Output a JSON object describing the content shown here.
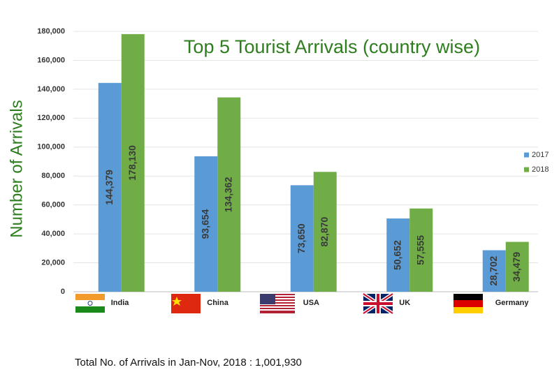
{
  "chart_data": {
    "type": "bar",
    "title": "Top 5 Tourist Arrivals (country wise)",
    "y_label": "Number of Arrivals",
    "footnote": "Total No. of Arrivals in Jan-Nov, 2018 : 1,001,930",
    "categories": [
      "India",
      "China",
      "USA",
      "UK",
      "Germany"
    ],
    "series": [
      {
        "name": "2017",
        "color": "#5b9bd5",
        "values": [
          144379,
          93654,
          73650,
          50652,
          28702
        ],
        "value_labels": [
          "144,379",
          "93,654",
          "73,650",
          "50,652",
          "28,702"
        ]
      },
      {
        "name": "2018",
        "color": "#70ad47",
        "values": [
          178130,
          134362,
          82870,
          57555,
          34479
        ],
        "value_labels": [
          "178,130",
          "134,362",
          "82,870",
          "57,555",
          "34,479"
        ]
      }
    ],
    "ylim": [
      0,
      180000
    ],
    "yticks": [
      0,
      {
        "value": 20000,
        "label": "20,000"
      },
      {
        "value": 40000,
        "label": "40,000"
      },
      {
        "value": 60000,
        "label": "60,000"
      },
      {
        "value": 80000,
        "label": "80,000"
      },
      {
        "value": 100000,
        "label": "100,000"
      },
      {
        "value": 120000,
        "label": "120,000"
      },
      {
        "value": 140000,
        "label": "140,000"
      },
      {
        "value": 160000,
        "label": "160,000"
      },
      {
        "value": 180000,
        "label": "180,000"
      }
    ],
    "grid": true,
    "legend": "right"
  }
}
